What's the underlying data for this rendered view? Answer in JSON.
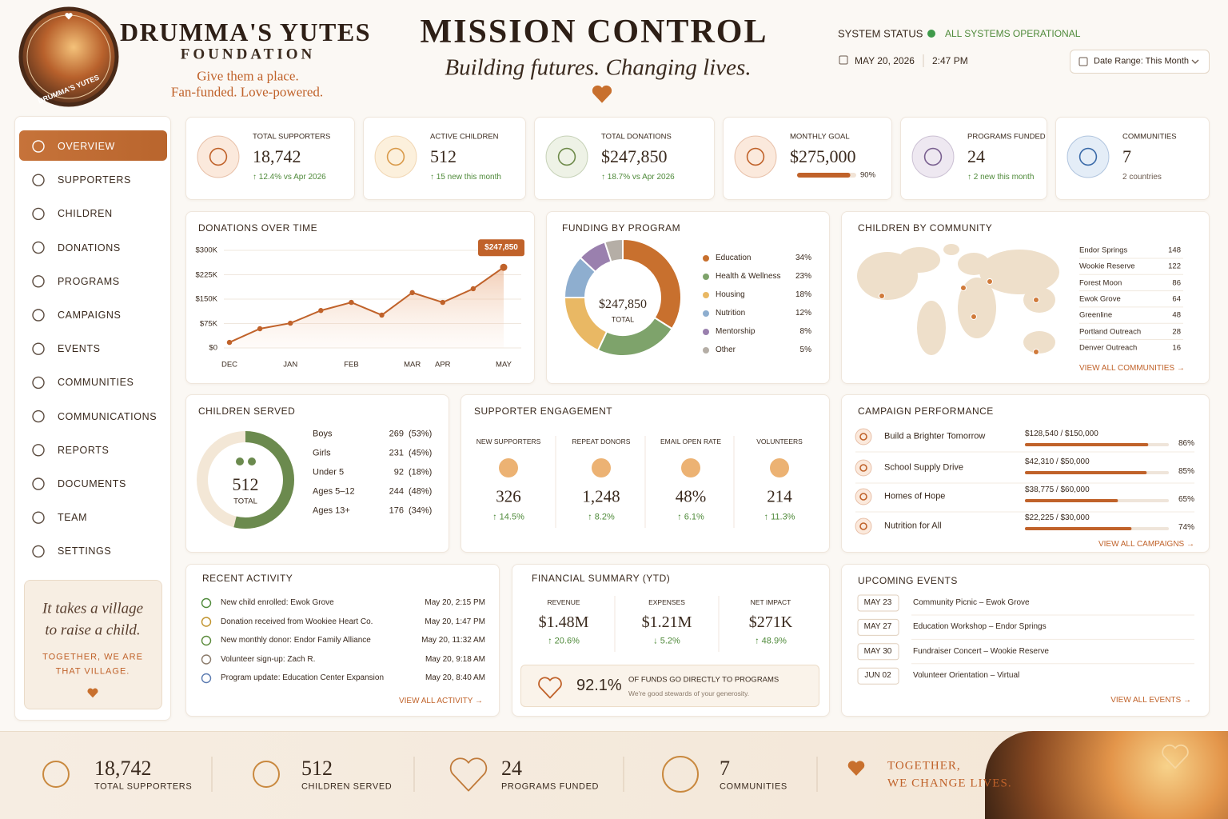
{
  "header": {
    "org_name": "DRUMMA'S YUTES",
    "org_sub": "FOUNDATION",
    "tagline1": "Give them a place.",
    "tagline2": "Fan-funded. Love-powered.",
    "logo_text": "DRUMMA'S YUTES",
    "title": "MISSION CONTROL",
    "subtitle": "Building futures. Changing lives.",
    "status_label": "SYSTEM STATUS",
    "status_value": "ALL SYSTEMS OPERATIONAL",
    "date": "MAY 20, 2026",
    "time": "2:47 PM",
    "date_range": "Date Range: This Month"
  },
  "nav": [
    "OVERVIEW",
    "SUPPORTERS",
    "CHILDREN",
    "DONATIONS",
    "PROGRAMS",
    "CAMPAIGNS",
    "EVENTS",
    "COMMUNITIES",
    "COMMUNICATIONS",
    "REPORTS",
    "DOCUMENTS",
    "TEAM",
    "SETTINGS"
  ],
  "quote": {
    "line1": "It takes a village",
    "line2": "to raise a child.",
    "line3": "TOGETHER, WE ARE",
    "line4": "THAT VILLAGE."
  },
  "kpis": [
    {
      "label": "TOTAL SUPPORTERS",
      "value": "18,742",
      "change": "↑ 12.4% vs Apr 2026"
    },
    {
      "label": "ACTIVE CHILDREN",
      "value": "512",
      "change": "↑ 15 new this month"
    },
    {
      "label": "TOTAL DONATIONS",
      "value": "$247,850",
      "change": "↑ 18.7% vs Apr 2026"
    },
    {
      "label": "MONTHLY GOAL",
      "value": "$275,000",
      "progress": 90,
      "progress_label": "90%"
    },
    {
      "label": "PROGRAMS FUNDED",
      "value": "24",
      "change": "↑ 2 new this month"
    },
    {
      "label": "COMMUNITIES",
      "value": "7",
      "change": "2 countries"
    }
  ],
  "chart_data": [
    {
      "type": "line",
      "title": "DONATIONS OVER TIME",
      "color": "#c0622a",
      "categories": [
        "DEC",
        null,
        "JAN",
        null,
        "FEB",
        null,
        "MAR",
        "APR",
        null,
        "MAY"
      ],
      "values": [
        17000,
        59000,
        76000,
        115000,
        140000,
        101000,
        170000,
        140000,
        182000,
        247850
      ],
      "value_labels": [
        null,
        null,
        null,
        null,
        null,
        null,
        null,
        null,
        null,
        "$247,850"
      ],
      "ylim": [
        0,
        300000
      ],
      "yticks": [
        {
          "value": 0,
          "label": "$0"
        },
        {
          "value": 75000,
          "label": "$75K"
        },
        {
          "value": 150000,
          "label": "$150K"
        },
        {
          "value": 225000,
          "label": "$225K"
        },
        {
          "value": 300000,
          "label": "$300K"
        }
      ],
      "grid": true
    },
    {
      "type": "pie",
      "title": "FUNDING BY PROGRAM",
      "categories": [
        "Education",
        "Health & Wellness",
        "Housing",
        "Nutrition",
        "Mentorship",
        "Other"
      ],
      "values": [
        34,
        23,
        18,
        12,
        8,
        5
      ],
      "value_labels": [
        "34%",
        "23%",
        "18%",
        "12%",
        "8%",
        "5%"
      ],
      "colors": [
        "#c8702e",
        "#7ea36b",
        "#e9b864",
        "#8eaecf",
        "#9a80ae",
        "#b5aea6"
      ],
      "center_value": "$247,850",
      "center_label": "TOTAL"
    }
  ],
  "communities": {
    "title": "CHILDREN BY COMMUNITY",
    "rows": [
      {
        "name": "Endor Springs",
        "value": 148
      },
      {
        "name": "Wookie Reserve",
        "value": 122
      },
      {
        "name": "Forest Moon",
        "value": 86
      },
      {
        "name": "Ewok Grove",
        "value": 64
      },
      {
        "name": "Greenline",
        "value": 48
      },
      {
        "name": "Portland Outreach",
        "value": 28
      },
      {
        "name": "Denver Outreach",
        "value": 16
      }
    ],
    "link": "VIEW ALL COMMUNITIES →"
  },
  "children_served": {
    "title": "CHILDREN SERVED",
    "total": "512",
    "total_label": "TOTAL",
    "rows": [
      {
        "label": "Boys",
        "value": 269,
        "pct": "(53%)"
      },
      {
        "label": "Girls",
        "value": 231,
        "pct": "(45%)"
      },
      {
        "label": "Under 5",
        "value": 92,
        "pct": "(18%)"
      },
      {
        "label": "Ages 5–12",
        "value": 244,
        "pct": "(48%)"
      },
      {
        "label": "Ages 13+",
        "value": 176,
        "pct": "(34%)"
      }
    ]
  },
  "engagement": {
    "title": "SUPPORTER ENGAGEMENT",
    "items": [
      {
        "label": "NEW SUPPORTERS",
        "value": "326",
        "change": "↑ 14.5%"
      },
      {
        "label": "REPEAT DONORS",
        "value": "1,248",
        "change": "↑ 8.2%"
      },
      {
        "label": "EMAIL OPEN RATE",
        "value": "48%",
        "change": "↑ 6.1%"
      },
      {
        "label": "VOLUNTEERS",
        "value": "214",
        "change": "↑ 11.3%"
      }
    ]
  },
  "campaigns": {
    "title": "CAMPAIGN PERFORMANCE",
    "items": [
      {
        "name": "Build a Brighter Tomorrow",
        "raised": 128540,
        "goal": 150000,
        "amount_label": "$128,540 / $150,000",
        "pct_label": "86%"
      },
      {
        "name": "School Supply Drive",
        "raised": 42310,
        "goal": 50000,
        "amount_label": "$42,310 / $50,000",
        "pct_label": "85%"
      },
      {
        "name": "Homes of Hope",
        "raised": 38775,
        "goal": 60000,
        "amount_label": "$38,775 / $60,000",
        "pct_label": "65%"
      },
      {
        "name": "Nutrition for All",
        "raised": 22225,
        "goal": 30000,
        "amount_label": "$22,225 / $30,000",
        "pct_label": "74%"
      }
    ],
    "link": "VIEW ALL CAMPAIGNS →"
  },
  "activity": {
    "title": "RECENT ACTIVITY",
    "items": [
      {
        "text": "New child enrolled:  Ewok Grove",
        "time": "May 20, 2:15 PM"
      },
      {
        "text": "Donation received from Wookiee Heart Co.",
        "time": "May 20, 1:47 PM"
      },
      {
        "text": "New monthly donor:  Endor Family Alliance",
        "time": "May 20, 11:32 AM"
      },
      {
        "text": "Volunteer sign-up:  Zach R.",
        "time": "May 20, 9:18 AM"
      },
      {
        "text": "Program update:  Education Center Expansion",
        "time": "May 20, 8:40 AM"
      }
    ],
    "link": "VIEW ALL ACTIVITY →"
  },
  "financial": {
    "title": "FINANCIAL SUMMARY (YTD)",
    "items": [
      {
        "label": "REVENUE",
        "value": "$1.48M",
        "change": "↑ 20.6%"
      },
      {
        "label": "EXPENSES",
        "value": "$1.21M",
        "change": "↓ 5.2%"
      },
      {
        "label": "NET IMPACT",
        "value": "$271K",
        "change": "↑ 48.9%"
      }
    ],
    "callout_value": "92.1%",
    "callout_text": "OF FUNDS GO DIRECTLY TO PROGRAMS",
    "callout_sub": "We're good stewards of your generosity."
  },
  "events": {
    "title": "UPCOMING EVENTS",
    "items": [
      {
        "date": "MAY 23",
        "name": "Community Picnic – Ewok Grove"
      },
      {
        "date": "MAY 27",
        "name": "Education Workshop – Endor Springs"
      },
      {
        "date": "MAY 30",
        "name": "Fundraiser Concert – Wookie Reserve"
      },
      {
        "date": "JUN 02",
        "name": "Volunteer Orientation – Virtual"
      }
    ],
    "link": "VIEW ALL EVENTS →"
  },
  "footer": {
    "stats": [
      {
        "value": "18,742",
        "label": "TOTAL SUPPORTERS"
      },
      {
        "value": "512",
        "label": "CHILDREN SERVED"
      },
      {
        "value": "24",
        "label": "PROGRAMS FUNDED"
      },
      {
        "value": "7",
        "label": "COMMUNITIES"
      }
    ],
    "motto1": "TOGETHER,",
    "motto2": "WE CHANGE LIVES."
  }
}
